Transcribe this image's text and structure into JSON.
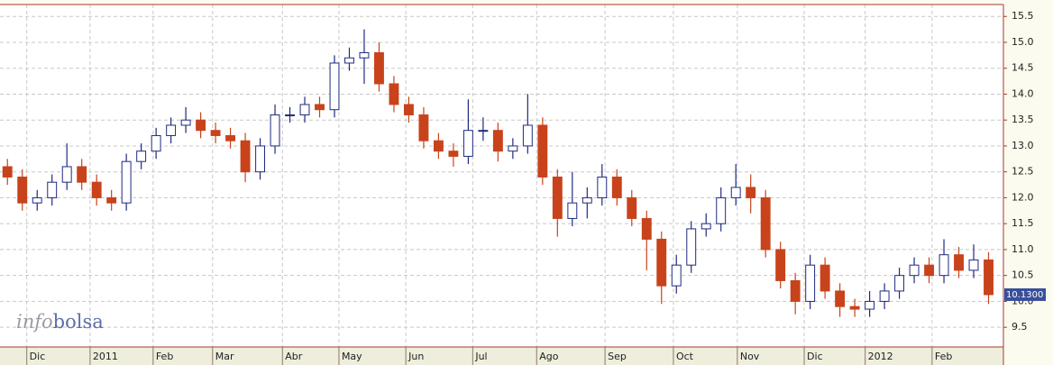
{
  "chart_data": {
    "type": "candlestick",
    "watermark": [
      "info",
      "bolsa"
    ],
    "open": [
      12.6,
      12.4,
      11.9,
      12.0,
      12.3,
      12.6,
      12.3,
      12.0,
      11.9,
      12.7,
      12.9,
      13.2,
      13.4,
      13.5,
      13.3,
      13.2,
      13.1,
      12.5,
      13.0,
      13.6,
      13.6,
      13.8,
      13.7,
      14.6,
      14.7,
      14.8,
      14.2,
      13.8,
      13.6,
      13.1,
      12.9,
      12.8,
      13.3,
      13.3,
      12.9,
      13.0,
      13.4,
      12.4,
      11.6,
      11.9,
      12.0,
      12.4,
      12.0,
      11.6,
      11.2,
      10.3,
      10.7,
      11.4,
      11.5,
      12.0,
      12.2,
      12.0,
      11.0,
      10.4,
      10.0,
      10.7,
      10.2,
      9.9,
      9.85,
      10.0,
      10.2,
      10.5,
      10.7,
      10.5,
      10.9,
      10.6,
      10.8
    ],
    "high": [
      12.75,
      12.55,
      12.15,
      12.45,
      13.05,
      12.75,
      12.45,
      12.15,
      12.85,
      13.05,
      13.35,
      13.55,
      13.75,
      13.65,
      13.45,
      13.35,
      13.25,
      13.15,
      13.8,
      13.75,
      13.95,
      13.95,
      14.75,
      14.9,
      15.25,
      15.0,
      14.35,
      13.95,
      13.75,
      13.25,
      13.05,
      13.9,
      13.55,
      13.45,
      13.15,
      14.0,
      13.55,
      12.55,
      12.5,
      12.2,
      12.65,
      12.55,
      12.15,
      11.75,
      11.35,
      10.9,
      11.55,
      11.7,
      12.2,
      12.65,
      12.45,
      12.15,
      11.15,
      10.55,
      10.9,
      10.85,
      10.35,
      10.05,
      10.2,
      10.35,
      10.65,
      10.85,
      10.85,
      11.2,
      11.05,
      11.1,
      10.95
    ],
    "low": [
      12.25,
      11.75,
      11.75,
      11.85,
      12.15,
      12.15,
      11.85,
      11.75,
      11.75,
      12.55,
      12.75,
      13.05,
      13.25,
      13.15,
      13.05,
      12.95,
      12.3,
      12.35,
      12.85,
      13.45,
      13.45,
      13.55,
      13.55,
      14.45,
      14.2,
      14.05,
      13.65,
      13.45,
      12.95,
      12.75,
      12.6,
      12.65,
      13.1,
      12.7,
      12.75,
      12.85,
      12.25,
      11.25,
      11.45,
      11.6,
      11.85,
      11.85,
      11.45,
      10.6,
      9.95,
      10.15,
      10.55,
      11.25,
      11.35,
      11.85,
      11.7,
      10.85,
      10.25,
      9.75,
      9.85,
      10.05,
      9.7,
      9.7,
      9.7,
      9.85,
      10.05,
      10.35,
      10.35,
      10.35,
      10.45,
      10.45,
      9.95
    ],
    "close": [
      12.4,
      11.9,
      12.0,
      12.3,
      12.6,
      12.3,
      12.0,
      11.9,
      12.7,
      12.9,
      13.2,
      13.4,
      13.5,
      13.3,
      13.2,
      13.1,
      12.5,
      13.0,
      13.6,
      13.6,
      13.8,
      13.7,
      14.6,
      14.7,
      14.8,
      14.2,
      13.8,
      13.6,
      13.1,
      12.9,
      12.8,
      13.3,
      13.3,
      12.9,
      13.0,
      13.4,
      12.4,
      11.6,
      11.9,
      12.0,
      12.4,
      12.0,
      11.6,
      11.2,
      10.3,
      10.7,
      11.4,
      11.5,
      12.0,
      12.2,
      12.0,
      11.0,
      10.4,
      10.0,
      10.7,
      10.2,
      9.9,
      9.85,
      10.0,
      10.2,
      10.5,
      10.7,
      10.5,
      10.9,
      10.6,
      10.8,
      10.13
    ],
    "up_color": "#1f2a80",
    "down_color": "#c8431b",
    "xlim": [
      -0.5,
      67
    ],
    "xticks": [
      {
        "value": 1.3,
        "label": "Dic"
      },
      {
        "value": 5.56,
        "label": "2011"
      },
      {
        "value": 9.8,
        "label": "Feb"
      },
      {
        "value": 13.8,
        "label": "Mar"
      },
      {
        "value": 18.5,
        "label": "Abr"
      },
      {
        "value": 22.3,
        "label": "May"
      },
      {
        "value": 26.8,
        "label": "Jun"
      },
      {
        "value": 31.3,
        "label": "Jul"
      },
      {
        "value": 35.6,
        "label": "Ago"
      },
      {
        "value": 40.2,
        "label": "Sep"
      },
      {
        "value": 44.8,
        "label": "Oct"
      },
      {
        "value": 49.1,
        "label": "Nov"
      },
      {
        "value": 53.6,
        "label": "Dic"
      },
      {
        "value": 57.7,
        "label": "2012"
      },
      {
        "value": 62.2,
        "label": "Feb"
      }
    ],
    "ylim": [
      9.12,
      15.73
    ],
    "yticks": [
      9.5,
      {
        "value": 10,
        "label": "10.0"
      },
      10.5,
      {
        "value": 11,
        "label": "11.0"
      },
      11.5,
      {
        "value": 12,
        "label": "12.0"
      },
      12.5,
      {
        "value": 13,
        "label": "13.0"
      },
      13.5,
      {
        "value": 14,
        "label": "14.0"
      },
      14.5,
      {
        "value": 15,
        "label": "15.0"
      },
      15.5
    ],
    "last_price": {
      "value": 10.13,
      "label": "10.1300"
    },
    "grid": true
  }
}
